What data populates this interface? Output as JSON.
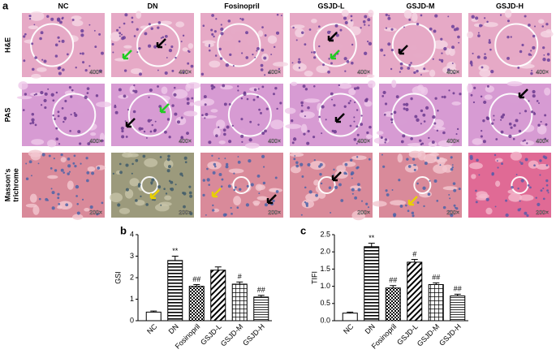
{
  "figure": {
    "panel_label": "a",
    "columns": [
      "NC",
      "DN",
      "Fosinopril",
      "GSJD-L",
      "GSJD-M",
      "GSJD-H"
    ],
    "rows": [
      {
        "lines": [
          "H&E"
        ],
        "magnification": "400×",
        "stain": "he"
      },
      {
        "lines": [
          "PAS"
        ],
        "magnification": "400×",
        "stain": "pas"
      },
      {
        "lines": [
          "Masson's",
          "trichrome"
        ],
        "magnification": "200×",
        "stain": "masson"
      }
    ]
  },
  "chart_data": [
    {
      "type": "bar",
      "panel_label": "b",
      "y_label": "GSI",
      "categories": [
        "NC",
        "DN",
        "Fosinopril",
        "GSJD-L",
        "GSJD-M",
        "GSJD-H"
      ],
      "values": [
        0.4,
        2.8,
        1.6,
        2.35,
        1.7,
        1.1
      ],
      "errors": [
        0.05,
        0.2,
        0.08,
        0.15,
        0.1,
        0.08
      ],
      "annotations": [
        null,
        "**",
        "##",
        null,
        "#",
        "##"
      ],
      "patterns": [
        "none",
        "hstripe",
        "check",
        "diag",
        "grid",
        "hline"
      ],
      "ylim": [
        0,
        4
      ],
      "yticks": [
        0,
        1,
        2,
        3,
        4
      ]
    },
    {
      "type": "bar",
      "panel_label": "c",
      "y_label": "TIFI",
      "categories": [
        "NC",
        "DN",
        "Fosinopril",
        "GSJD-L",
        "GSJD-M",
        "GSJD-H"
      ],
      "values": [
        0.22,
        2.15,
        0.95,
        1.7,
        1.05,
        0.72
      ],
      "errors": [
        0.03,
        0.1,
        0.07,
        0.08,
        0.05,
        0.05
      ],
      "annotations": [
        null,
        "**",
        "##",
        "#",
        "##",
        "##"
      ],
      "patterns": [
        "none",
        "hstripe",
        "check",
        "diag",
        "grid",
        "hline"
      ],
      "ylim": [
        0,
        2.5
      ],
      "yticks": [
        {
          "value": 0,
          "label": "0.0"
        },
        0.5,
        {
          "value": 1,
          "label": "1.0"
        },
        1.5,
        {
          "value": 2,
          "label": "2.0"
        },
        2.5
      ]
    }
  ]
}
